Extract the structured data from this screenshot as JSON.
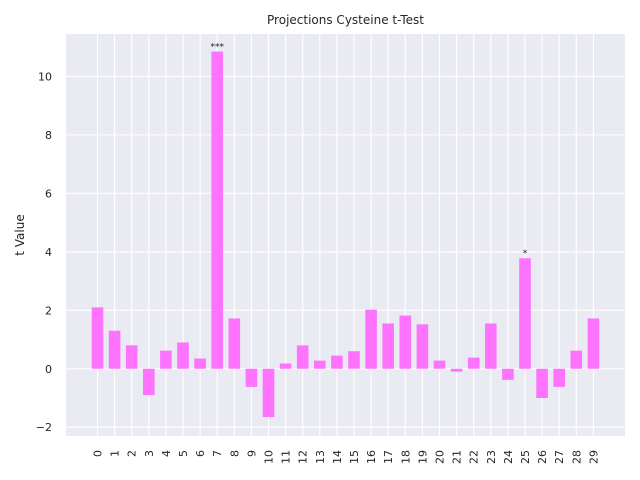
{
  "chart_data": {
    "type": "bar",
    "title": "Projections Cysteine t-Test",
    "xlabel": "",
    "ylabel": "t Value",
    "categories": [
      "0",
      "1",
      "2",
      "3",
      "4",
      "5",
      "6",
      "7",
      "8",
      "9",
      "10",
      "11",
      "12",
      "13",
      "14",
      "15",
      "16",
      "17",
      "18",
      "19",
      "20",
      "21",
      "22",
      "23",
      "24",
      "25",
      "26",
      "27",
      "28",
      "29"
    ],
    "values": [
      2.1,
      1.3,
      0.8,
      -0.9,
      0.62,
      0.9,
      0.35,
      10.85,
      1.72,
      -0.62,
      -1.65,
      0.18,
      0.8,
      0.28,
      0.45,
      0.6,
      2.02,
      1.55,
      1.82,
      1.52,
      0.28,
      -0.1,
      0.38,
      1.55,
      -0.38,
      3.78,
      -1.0,
      -0.62,
      0.62,
      1.72
    ],
    "annotations": [
      {
        "index": 7,
        "text": "***"
      },
      {
        "index": 25,
        "text": "*"
      }
    ],
    "yticks": [
      -2,
      0,
      2,
      4,
      6,
      8,
      10
    ],
    "ylim": [
      -2.3,
      11.45
    ],
    "grid": true,
    "bar_color": "#ff66ff",
    "background_color": "#eaeaf2",
    "grid_color": "#ffffff"
  }
}
